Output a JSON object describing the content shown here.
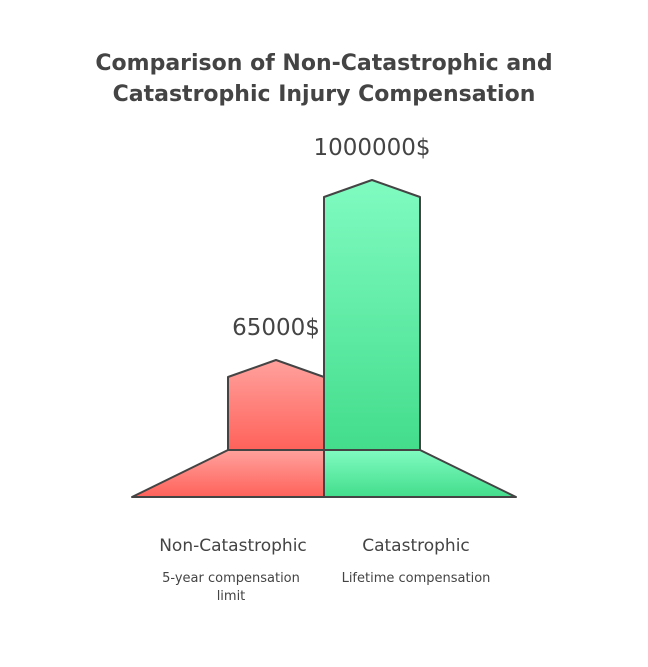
{
  "title": {
    "line1": "Comparison of Non-Catastrophic and",
    "line2": "Catastrophic Injury Compensation"
  },
  "chart_data": {
    "type": "bar",
    "categories": [
      "Non-Catastrophic",
      "Catastrophic"
    ],
    "values": [
      65000,
      1000000
    ],
    "value_labels": [
      "65000$",
      "1000000$"
    ],
    "descriptions": [
      "5-year compensation limit",
      "Lifetime compensation"
    ],
    "colors": {
      "Non-Catastrophic": {
        "top": "#FFA19D",
        "bottom": "#FF625A"
      },
      "Catastrophic": {
        "top": "#80FBC1",
        "bottom": "#43DD8C"
      }
    }
  }
}
